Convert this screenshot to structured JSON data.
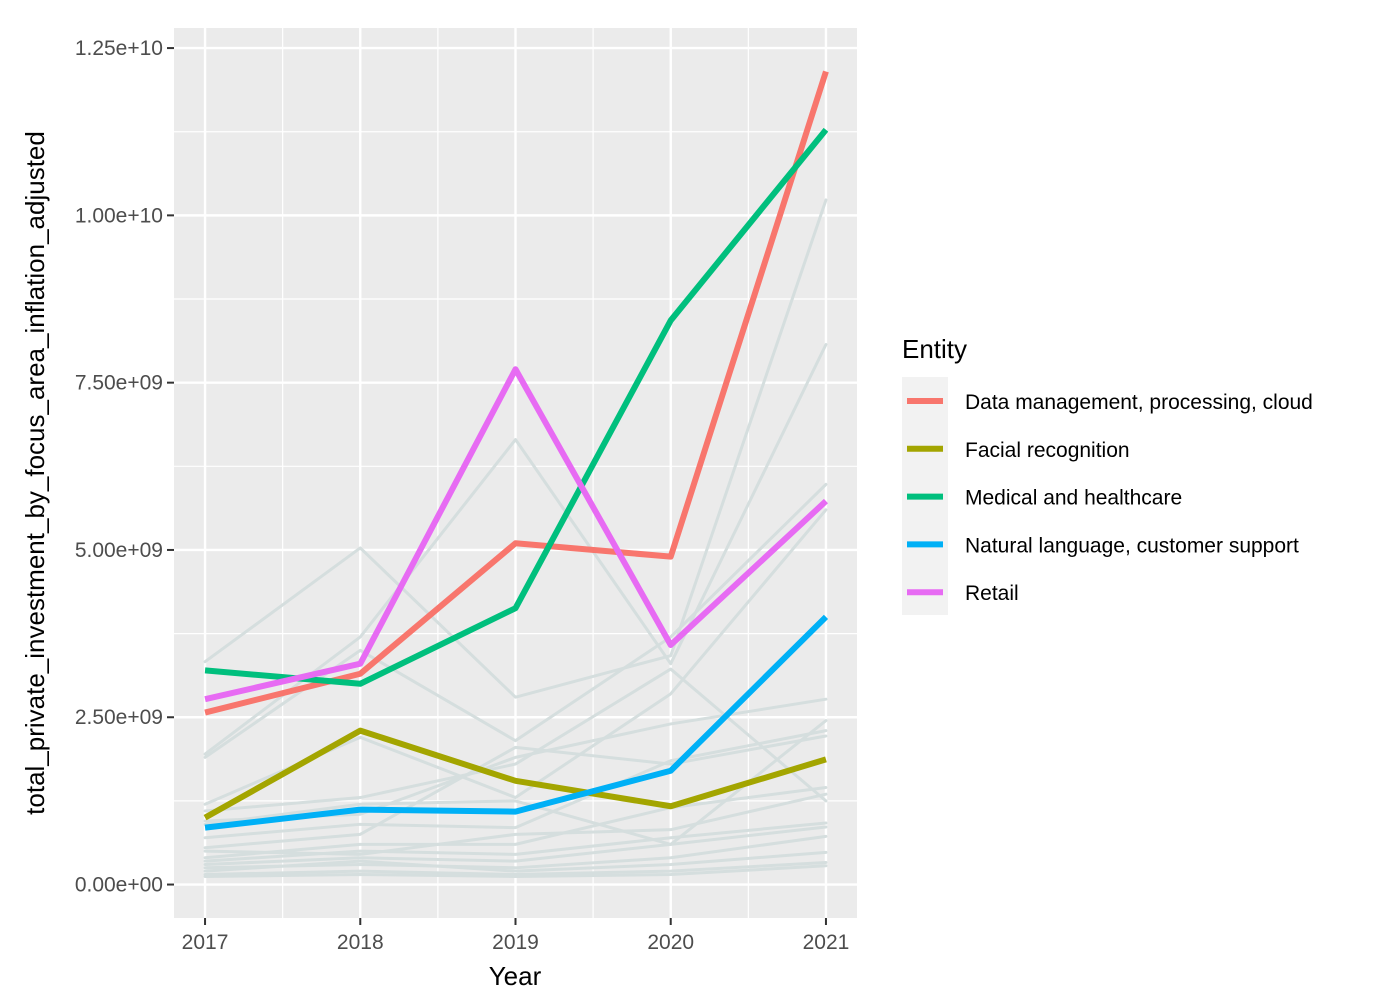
{
  "chart_data": {
    "type": "line",
    "xlabel": "Year",
    "ylabel": "total_private_investment_by_focus_area_inflation_adjusted",
    "x": [
      2017,
      2018,
      2019,
      2020,
      2021
    ],
    "xlim": [
      2016.8,
      2021.2
    ],
    "ylim": [
      -500000000,
      12800000000
    ],
    "yticks": [
      0,
      2500000000,
      5000000000,
      7500000000,
      10000000000,
      12500000000
    ],
    "ytick_labels": [
      "0.00e+00",
      "2.50e+09",
      "5.00e+09",
      "7.50e+09",
      "1.00e+10",
      "1.25e+10"
    ],
    "grid": true,
    "legend": {
      "title": "Entity",
      "position": "right"
    },
    "series": [
      {
        "name": "Data management, processing, cloud",
        "color": "#F8766D",
        "values": [
          2570000000,
          3150000000,
          5100000000,
          4900000000,
          12150000000
        ]
      },
      {
        "name": "Facial recognition",
        "color": "#A3A500",
        "values": [
          1000000000,
          2300000000,
          1550000000,
          1170000000,
          1870000000
        ]
      },
      {
        "name": "Medical and healthcare",
        "color": "#00BF7D",
        "values": [
          3200000000,
          3000000000,
          4130000000,
          8430000000,
          11280000000
        ]
      },
      {
        "name": "Natural language, customer support",
        "color": "#00B0F6",
        "values": [
          850000000,
          1120000000,
          1090000000,
          1700000000,
          4000000000
        ]
      },
      {
        "name": "Retail",
        "color": "#E76BF3",
        "values": [
          2770000000,
          3300000000,
          7700000000,
          3580000000,
          5730000000
        ]
      }
    ],
    "background_series_color": "#D5DEDE",
    "background_series": [
      [
        3330000000,
        5030000000,
        2800000000,
        3420000000,
        10230000000
      ],
      [
        1950000000,
        3700000000,
        6650000000,
        3300000000,
        8070000000
      ],
      [
        1900000000,
        3500000000,
        2150000000,
        3700000000,
        5980000000
      ],
      [
        1200000000,
        2200000000,
        1300000000,
        2850000000,
        5600000000
      ],
      [
        1100000000,
        1300000000,
        1800000000,
        3220000000,
        1250000000
      ],
      [
        950000000,
        1050000000,
        1900000000,
        2400000000,
        2770000000
      ],
      [
        900000000,
        1200000000,
        1250000000,
        600000000,
        2450000000
      ],
      [
        700000000,
        900000000,
        850000000,
        1850000000,
        2300000000
      ],
      [
        550000000,
        750000000,
        2050000000,
        1800000000,
        2220000000
      ],
      [
        500000000,
        450000000,
        750000000,
        820000000,
        1350000000
      ],
      [
        400000000,
        600000000,
        600000000,
        1150000000,
        1450000000
      ],
      [
        350000000,
        500000000,
        450000000,
        700000000,
        920000000
      ],
      [
        300000000,
        400000000,
        350000000,
        600000000,
        860000000
      ],
      [
        250000000,
        300000000,
        250000000,
        400000000,
        720000000
      ],
      [
        200000000,
        350000000,
        200000000,
        300000000,
        480000000
      ],
      [
        150000000,
        200000000,
        150000000,
        200000000,
        330000000
      ],
      [
        120000000,
        150000000,
        120000000,
        150000000,
        280000000
      ]
    ]
  }
}
